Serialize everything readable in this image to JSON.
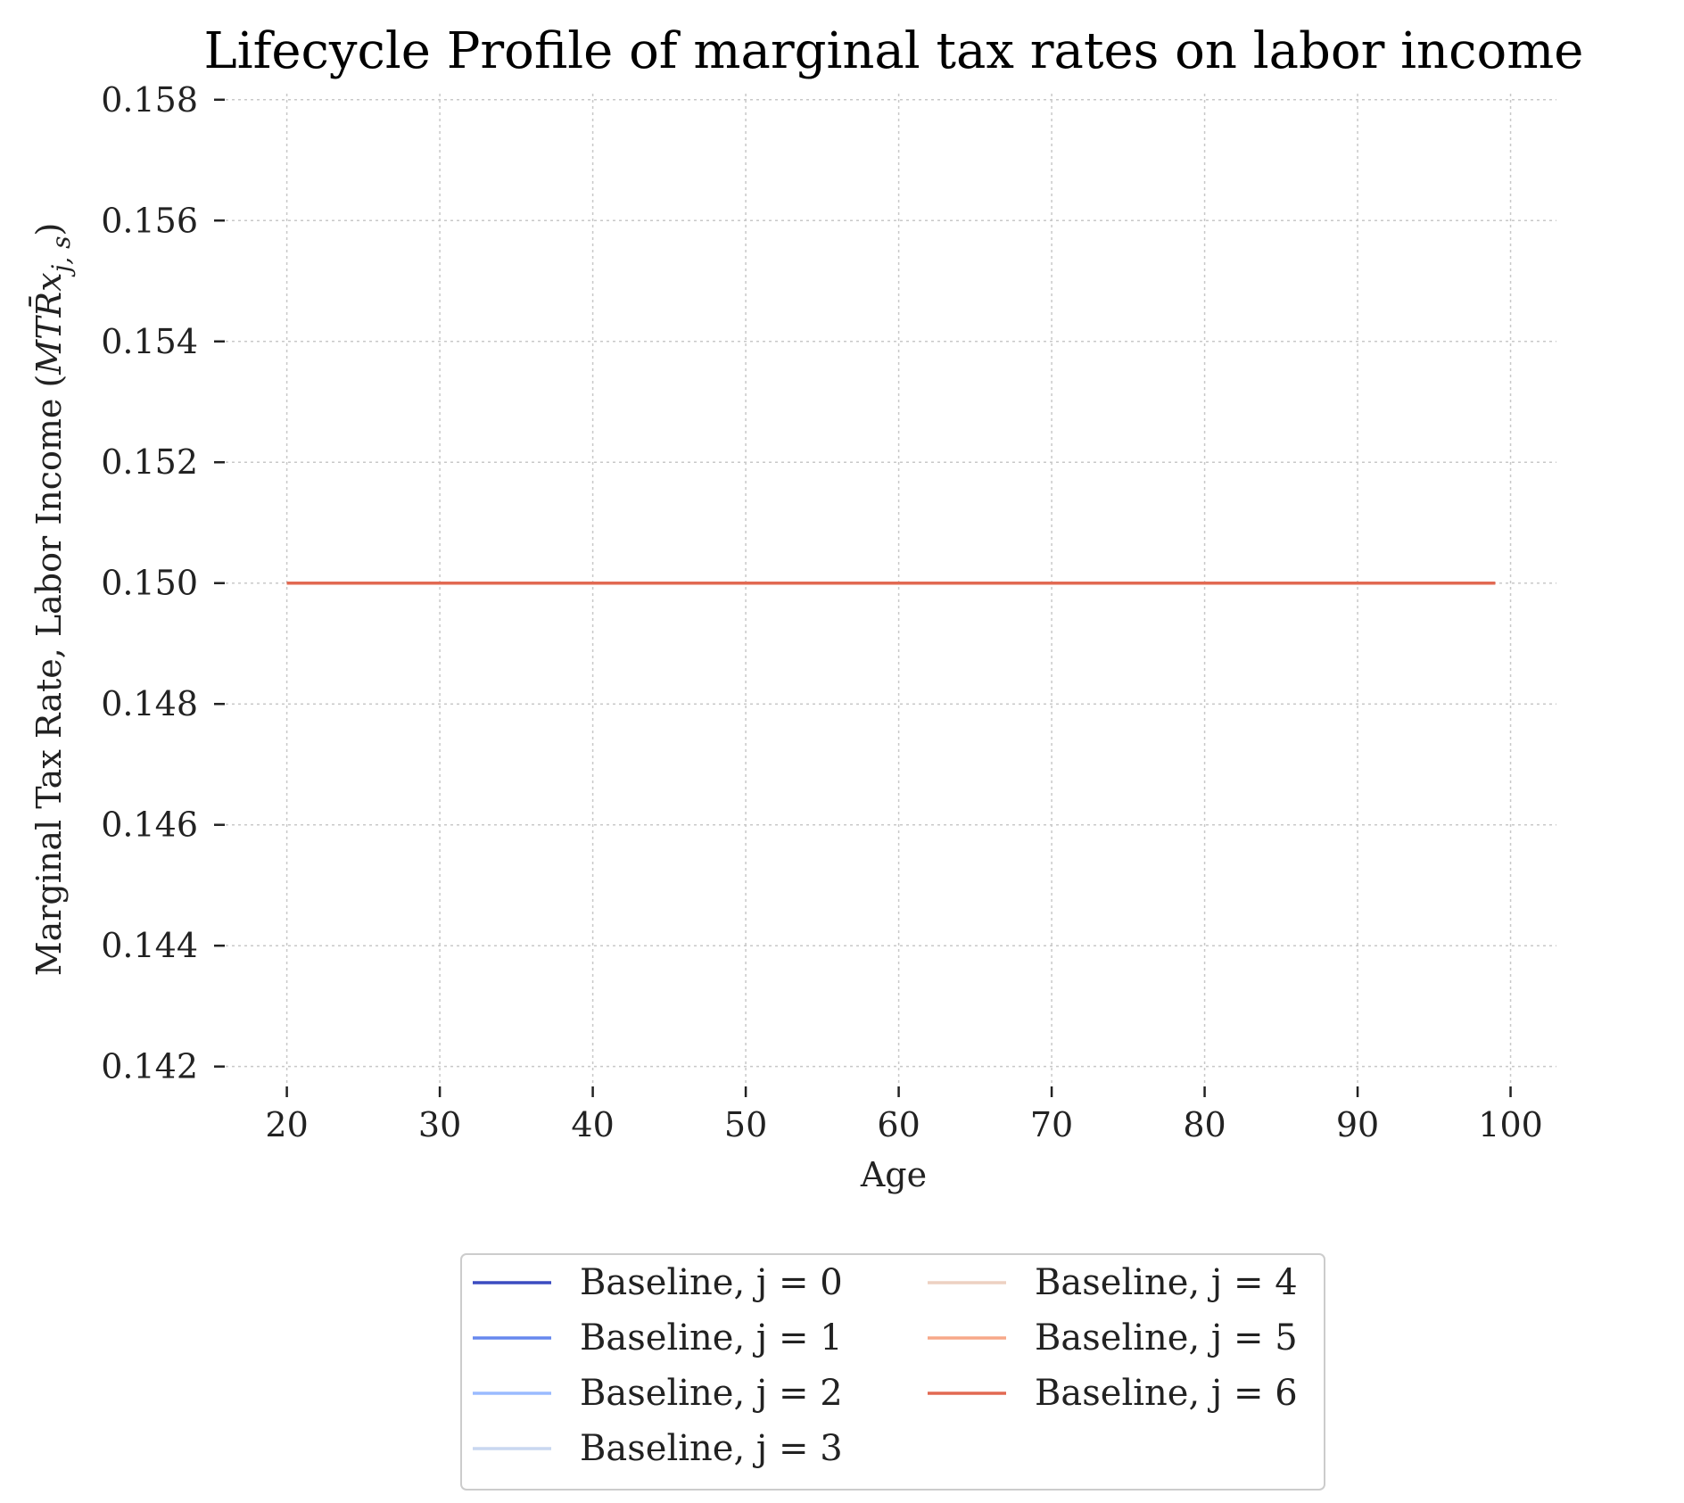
{
  "chart_data": {
    "type": "line",
    "title": "Lifecycle Profile of marginal tax rates on labor income",
    "xlabel": "Age",
    "ylabel": "Marginal Tax Rate, Labor Income (MTR̄x_{j,s})",
    "xlim": [
      16,
      103
    ],
    "ylim": [
      0.1417,
      0.1581
    ],
    "xticks": [
      20,
      30,
      40,
      50,
      60,
      70,
      80,
      90,
      100
    ],
    "yticks": [
      0.142,
      0.144,
      0.146,
      0.148,
      0.15,
      0.152,
      0.154,
      0.156,
      0.158
    ],
    "ytick_labels": [
      "0.142",
      "0.144",
      "0.146",
      "0.148",
      "0.150",
      "0.152",
      "0.154",
      "0.156",
      "0.158"
    ],
    "grid": true,
    "legend_position": "bottom-center",
    "legend_columns": 2,
    "x_range": [
      20,
      99
    ],
    "series": [
      {
        "name": "Baseline, j = 0",
        "color": "#3b4cc0",
        "x": [
          20,
          99
        ],
        "values": [
          0.15,
          0.15
        ]
      },
      {
        "name": "Baseline, j = 1",
        "color": "#6788ee",
        "x": [
          20,
          99
        ],
        "values": [
          0.15,
          0.15
        ]
      },
      {
        "name": "Baseline, j = 2",
        "color": "#9abbff",
        "x": [
          20,
          99
        ],
        "values": [
          0.15,
          0.15
        ]
      },
      {
        "name": "Baseline, j = 3",
        "color": "#c9d7f0",
        "x": [
          20,
          99
        ],
        "values": [
          0.15,
          0.15
        ]
      },
      {
        "name": "Baseline, j = 4",
        "color": "#edd1c2",
        "x": [
          20,
          99
        ],
        "values": [
          0.15,
          0.15
        ]
      },
      {
        "name": "Baseline, j = 5",
        "color": "#f7a889",
        "x": [
          20,
          99
        ],
        "values": [
          0.15,
          0.15
        ]
      },
      {
        "name": "Baseline, j = 6",
        "color": "#e26952",
        "x": [
          20,
          99
        ],
        "values": [
          0.15,
          0.15
        ]
      }
    ]
  }
}
